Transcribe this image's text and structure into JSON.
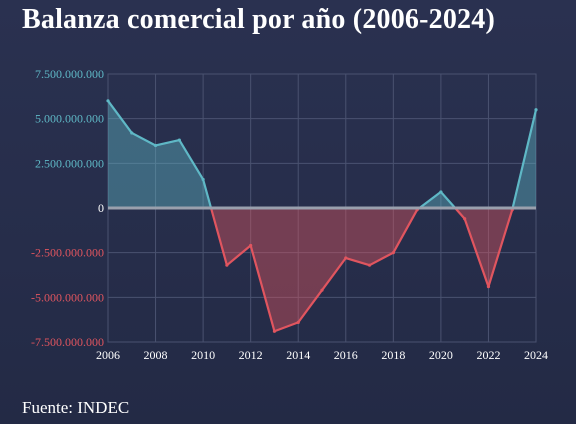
{
  "title": "Balanza comercial por año (2006-2024)",
  "source": "Fuente: INDEC",
  "colors": {
    "positive": "#5fb8c6",
    "negative": "#e0555f",
    "zero_line": "#9aa0ad",
    "grid": "#4a5270"
  },
  "chart_data": {
    "type": "area",
    "x_label": "",
    "y_label": "",
    "xlim": [
      2006,
      2024
    ],
    "ylim": [
      -7500000000,
      7500000000
    ],
    "grid": true,
    "x_ticks": [
      2006,
      2008,
      2010,
      2012,
      2014,
      2016,
      2018,
      2020,
      2022,
      2024
    ],
    "y_ticks": [
      {
        "value": 7500000000,
        "label": "7.500.000.000",
        "sign": "positive"
      },
      {
        "value": 5000000000,
        "label": "5.000.000.000",
        "sign": "positive"
      },
      {
        "value": 2500000000,
        "label": "2.500.000.000",
        "sign": "positive"
      },
      {
        "value": 0,
        "label": "0",
        "sign": "zero"
      },
      {
        "value": -2500000000,
        "label": "-2.500.000.000",
        "sign": "negative"
      },
      {
        "value": -5000000000,
        "label": "-5.000.000.000",
        "sign": "negative"
      },
      {
        "value": -7500000000,
        "label": "-7.500.000.000",
        "sign": "negative"
      }
    ],
    "x": [
      2006,
      2007,
      2008,
      2009,
      2010,
      2011,
      2012,
      2013,
      2014,
      2015,
      2016,
      2017,
      2018,
      2019,
      2020,
      2021,
      2022,
      2023,
      2024
    ],
    "values": [
      6000000000,
      4200000000,
      3500000000,
      3800000000,
      1600000000,
      -3200000000,
      -2100000000,
      -6900000000,
      -6400000000,
      -4600000000,
      -2800000000,
      -3200000000,
      -2500000000,
      -100000000,
      900000000,
      -600000000,
      -4400000000,
      -100000000,
      5500000000
    ]
  }
}
